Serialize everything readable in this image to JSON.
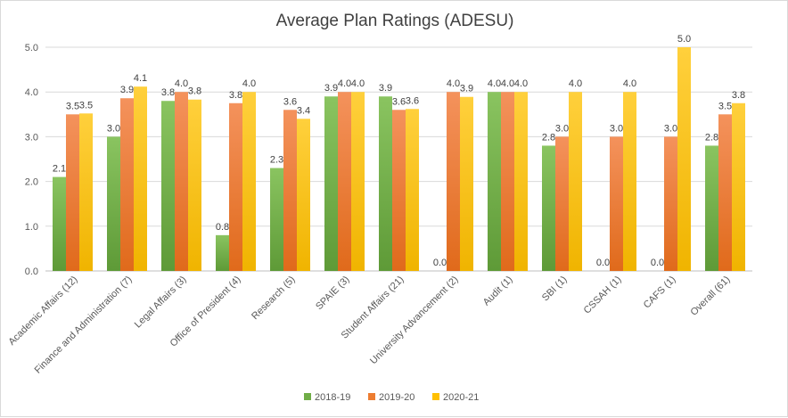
{
  "chart_data": {
    "type": "bar",
    "title": "Average Plan Ratings (ADESU)",
    "xlabel": "",
    "ylabel": "",
    "ylim": [
      0,
      5
    ],
    "yticks": [
      "0.0",
      "1.0",
      "2.0",
      "3.0",
      "4.0",
      "5.0"
    ],
    "grid": true,
    "legend_position": "bottom",
    "categories": [
      "Academic Affairs (12)",
      "Finance and Administration (7)",
      "Legal Affairs (3)",
      "Office of President (4)",
      "Research (5)",
      "SPAIE (3)",
      "Student Affairs (21)",
      "University Advancement (2)",
      "Audit (1)",
      "SBI (1)",
      "CSSAH (1)",
      "CAFS (1)",
      "Overall (61)"
    ],
    "series": [
      {
        "name": "2018-19",
        "color": "#70ad47",
        "values": [
          2.1,
          3.0,
          3.8,
          0.8,
          2.3,
          3.9,
          3.9,
          0.0,
          4.0,
          2.8,
          0.0,
          0.0,
          2.8
        ]
      },
      {
        "name": "2019-20",
        "color": "#ed7d31",
        "values": [
          3.5,
          3.86,
          4.0,
          3.75,
          3.6,
          4.0,
          3.6,
          4.0,
          4.0,
          3.0,
          3.0,
          3.0,
          3.5
        ]
      },
      {
        "name": "2020-21",
        "color": "#ffc000",
        "values": [
          3.52,
          4.12,
          3.83,
          4.0,
          3.4,
          4.0,
          3.62,
          3.89,
          4.0,
          4.0,
          4.0,
          5.0,
          3.75
        ]
      }
    ],
    "data_labels": [
      [
        "2.1",
        "3.5",
        "3.5"
      ],
      [
        "3.0",
        "3.9",
        "4.1"
      ],
      [
        "3.8",
        "4.0",
        "3.8"
      ],
      [
        "0.8",
        "3.8",
        "4.0"
      ],
      [
        "2.3",
        "3.6",
        "3.4"
      ],
      [
        "3.9",
        "4.0",
        "4.0"
      ],
      [
        "3.9",
        "3.6",
        "3.6"
      ],
      [
        "0.0",
        "4.0",
        "3.9"
      ],
      [
        "4.0",
        "4.0",
        "4.0"
      ],
      [
        "2.8",
        "3.0",
        "4.0"
      ],
      [
        "0.0",
        "3.0",
        "4.0"
      ],
      [
        "0.0",
        "3.0",
        "5.0"
      ],
      [
        "2.8",
        "3.5",
        "3.8"
      ]
    ]
  }
}
